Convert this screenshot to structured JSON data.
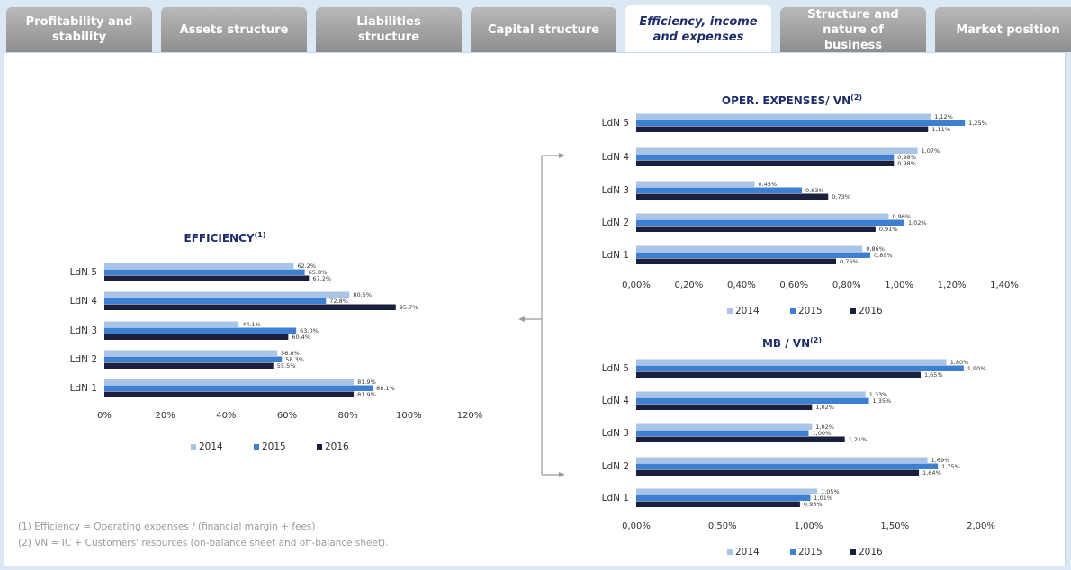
{
  "tabs": [
    {
      "label": "Profitability and stability"
    },
    {
      "label": "Assets structure"
    },
    {
      "label": "Liabilities structure"
    },
    {
      "label": "Capital structure"
    },
    {
      "label": "Efficiency, income and expenses",
      "active": true
    },
    {
      "label": "Structure and nature of business"
    },
    {
      "label": "Market position"
    }
  ],
  "chart_data": [
    {
      "type": "bar",
      "orientation": "horizontal",
      "title": "EFFICIENCY",
      "title_sup": "(1)",
      "categories": [
        "LdN 5",
        "LdN 4",
        "LdN 3",
        "LdN 2",
        "LdN 1"
      ],
      "series": [
        {
          "name": "2014",
          "color": "#a9c4e6",
          "values": [
            62.2,
            80.5,
            44.1,
            56.8,
            81.9
          ],
          "value_labels": [
            "62.2%",
            "80.5%",
            "44.1%",
            "56.8%",
            "81.9%"
          ]
        },
        {
          "name": "2015",
          "color": "#3d7fd1",
          "values": [
            65.8,
            72.8,
            63.0,
            58.3,
            88.1
          ],
          "value_labels": [
            "65.8%",
            "72.8%",
            "63.0%",
            "58.3%",
            "88.1%"
          ]
        },
        {
          "name": "2016",
          "color": "#1b1f3f",
          "values": [
            67.2,
            95.7,
            60.4,
            55.5,
            81.9
          ],
          "value_labels": [
            "67.2%",
            "95.7%",
            "60.4%",
            "55.5%",
            "81.9%"
          ]
        }
      ],
      "xlim": [
        0,
        120
      ],
      "xticks": [
        {
          "value": 0,
          "label": "0%"
        },
        {
          "value": 20,
          "label": "20%"
        },
        {
          "value": 40,
          "label": "40%"
        },
        {
          "value": 60,
          "label": "60%"
        },
        {
          "value": 80,
          "label": "80%"
        },
        {
          "value": 100,
          "label": "100%"
        },
        {
          "value": 120,
          "label": "120%"
        }
      ],
      "legend": "bottom"
    },
    {
      "type": "bar",
      "orientation": "horizontal",
      "title": "OPER. EXPENSES/ VN",
      "title_sup": "(2)",
      "categories": [
        "LdN 5",
        "LdN 4",
        "LdN 3",
        "LdN 2",
        "LdN 1"
      ],
      "series": [
        {
          "name": "2014",
          "color": "#a9c4e6",
          "values": [
            1.12,
            1.07,
            0.45,
            0.96,
            0.86
          ],
          "value_labels": [
            "1,12%",
            "1,07%",
            "0,45%",
            "0,96%",
            "0,86%"
          ]
        },
        {
          "name": "2015",
          "color": "#3d7fd1",
          "values": [
            1.25,
            0.98,
            0.63,
            1.02,
            0.89
          ],
          "value_labels": [
            "1,25%",
            "0,98%",
            "0,63%",
            "1,02%",
            "0,89%"
          ]
        },
        {
          "name": "2016",
          "color": "#1b1f3f",
          "values": [
            1.11,
            0.98,
            0.73,
            0.91,
            0.76
          ],
          "value_labels": [
            "1,11%",
            "0,98%",
            "0,73%",
            "0,91%",
            "0,76%"
          ]
        }
      ],
      "xlim": [
        0,
        1.4
      ],
      "xticks": [
        {
          "value": 0,
          "label": "0,00%"
        },
        {
          "value": 0.2,
          "label": "0,20%"
        },
        {
          "value": 0.4,
          "label": "0,40%"
        },
        {
          "value": 0.6,
          "label": "0,60%"
        },
        {
          "value": 0.8,
          "label": "0,80%"
        },
        {
          "value": 1.0,
          "label": "1,00%"
        },
        {
          "value": 1.2,
          "label": "1,20%"
        },
        {
          "value": 1.4,
          "label": "1,40%"
        }
      ],
      "legend": "bottom"
    },
    {
      "type": "bar",
      "orientation": "horizontal",
      "title": "MB / VN",
      "title_sup": "(2)",
      "categories": [
        "LdN 5",
        "LdN 4",
        "LdN 3",
        "LdN 2",
        "LdN 1"
      ],
      "series": [
        {
          "name": "2014",
          "color": "#a9c4e6",
          "values": [
            1.8,
            1.33,
            1.02,
            1.69,
            1.05
          ],
          "value_labels": [
            "1,80%",
            "1,33%",
            "1,02%",
            "1,69%",
            "1,05%"
          ]
        },
        {
          "name": "2015",
          "color": "#3d7fd1",
          "values": [
            1.9,
            1.35,
            1.0,
            1.75,
            1.01
          ],
          "value_labels": [
            "1,90%",
            "1,35%",
            "1,00%",
            "1,75%",
            "1,01%"
          ]
        },
        {
          "name": "2016",
          "color": "#1b1f3f",
          "values": [
            1.65,
            1.02,
            1.21,
            1.64,
            0.95
          ],
          "value_labels": [
            "1,65%",
            "1,02%",
            "1,21%",
            "1,64%",
            "0,95%"
          ]
        }
      ],
      "xlim": [
        0,
        2.0
      ],
      "xticks": [
        {
          "value": 0,
          "label": "0,00%"
        },
        {
          "value": 0.5,
          "label": "0,50%"
        },
        {
          "value": 1.0,
          "label": "1,00%"
        },
        {
          "value": 1.5,
          "label": "1,50%"
        },
        {
          "value": 2.0,
          "label": "2,00%"
        }
      ],
      "legend": "bottom"
    }
  ],
  "footnotes": [
    "(1) Efficiency = Operating expenses / (financial margin + fees)",
    "(2) VN = IC + Customers' resources (on-balance sheet and off-balance sheet)."
  ]
}
